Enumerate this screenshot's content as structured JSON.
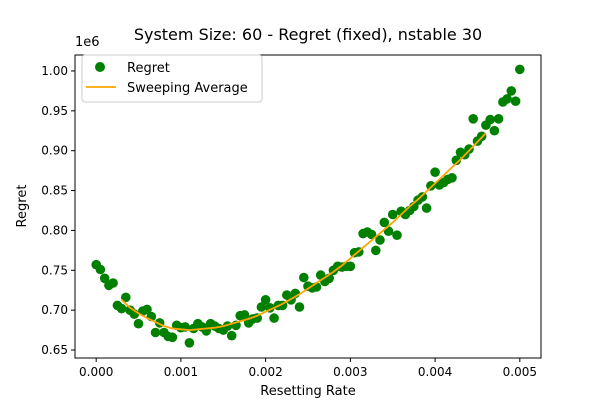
{
  "chart_data": {
    "type": "scatter",
    "title": "System Size: 60 - Regret (fixed), nstable 30",
    "xlabel": "Resetting Rate",
    "ylabel": "Regret",
    "y_scale_label": "1e6",
    "xlim": [
      -0.00025,
      0.00525
    ],
    "ylim": [
      0.64,
      1.02
    ],
    "x_ticks": [
      0.0,
      0.001,
      0.002,
      0.003,
      0.004,
      0.005
    ],
    "x_tick_labels": [
      "0.000",
      "0.001",
      "0.002",
      "0.003",
      "0.004",
      "0.005"
    ],
    "y_ticks": [
      0.65,
      0.7,
      0.75,
      0.8,
      0.85,
      0.9,
      0.95,
      1.0
    ],
    "y_tick_labels": [
      "0.65",
      "0.70",
      "0.75",
      "0.80",
      "0.85",
      "0.90",
      "0.95",
      "1.00"
    ],
    "legend_position": "top-left",
    "series": [
      {
        "name": "Regret",
        "kind": "scatter",
        "color": "#008000",
        "x": [
          0.0,
          5e-05,
          0.0001,
          0.00015,
          0.0002,
          0.00025,
          0.0003,
          0.00035,
          0.0004,
          0.00045,
          0.0005,
          0.00055,
          0.0006,
          0.00065,
          0.0007,
          0.00075,
          0.0008,
          0.00085,
          0.0009,
          0.00095,
          0.001,
          0.00105,
          0.0011,
          0.00115,
          0.0012,
          0.00125,
          0.0013,
          0.00135,
          0.0014,
          0.00145,
          0.0015,
          0.00155,
          0.0016,
          0.00165,
          0.0017,
          0.00175,
          0.0018,
          0.00185,
          0.0019,
          0.00195,
          0.002,
          0.00205,
          0.0021,
          0.00215,
          0.0022,
          0.00225,
          0.0023,
          0.00235,
          0.0024,
          0.00245,
          0.0025,
          0.00255,
          0.0026,
          0.00265,
          0.0027,
          0.00275,
          0.0028,
          0.00285,
          0.0029,
          0.00295,
          0.003,
          0.00305,
          0.0031,
          0.00315,
          0.0032,
          0.00325,
          0.0033,
          0.00335,
          0.0034,
          0.00345,
          0.0035,
          0.00355,
          0.0036,
          0.00365,
          0.0037,
          0.00375,
          0.0038,
          0.00385,
          0.0039,
          0.00395,
          0.004,
          0.00405,
          0.0041,
          0.00415,
          0.0042,
          0.00425,
          0.0043,
          0.00435,
          0.0044,
          0.00445,
          0.0045,
          0.00455,
          0.0046,
          0.00465,
          0.0047,
          0.00475,
          0.0048,
          0.00485,
          0.0049,
          0.00495,
          0.005
        ],
        "y": [
          0.757,
          0.751,
          0.74,
          0.731,
          0.734,
          0.706,
          0.702,
          0.716,
          0.7,
          0.695,
          0.683,
          0.699,
          0.701,
          0.692,
          0.672,
          0.684,
          0.672,
          0.667,
          0.666,
          0.681,
          0.678,
          0.679,
          0.659,
          0.677,
          0.683,
          0.679,
          0.674,
          0.683,
          0.68,
          0.677,
          0.675,
          0.68,
          0.668,
          0.681,
          0.693,
          0.694,
          0.684,
          0.689,
          0.69,
          0.704,
          0.713,
          0.703,
          0.69,
          0.706,
          0.706,
          0.719,
          0.713,
          0.721,
          0.704,
          0.741,
          0.73,
          0.728,
          0.729,
          0.744,
          0.736,
          0.74,
          0.75,
          0.755,
          0.754,
          0.755,
          0.755,
          0.772,
          0.773,
          0.796,
          0.798,
          0.795,
          0.775,
          0.788,
          0.81,
          0.799,
          0.82,
          0.794,
          0.824,
          0.82,
          0.825,
          0.83,
          0.838,
          0.842,
          0.828,
          0.856,
          0.873,
          0.857,
          0.86,
          0.864,
          0.866,
          0.888,
          0.898,
          0.895,
          0.902,
          0.94,
          0.912,
          0.918,
          0.932,
          0.939,
          0.925,
          0.94,
          0.961,
          0.965,
          0.975,
          0.962,
          1.002
        ]
      },
      {
        "name": "Sweeping Average",
        "kind": "line",
        "color": "#ffa500",
        "x": [
          0.0003,
          0.0004,
          0.0005,
          0.0006,
          0.0007,
          0.0008,
          0.0009,
          0.001,
          0.0011,
          0.0012,
          0.0013,
          0.0014,
          0.0015,
          0.0016,
          0.0017,
          0.0018,
          0.0019,
          0.002,
          0.0021,
          0.0022,
          0.0023,
          0.0024,
          0.0025,
          0.0026,
          0.0027,
          0.0028,
          0.0029,
          0.003,
          0.0031,
          0.0032,
          0.0033,
          0.0034,
          0.0035,
          0.0036,
          0.0037,
          0.0038,
          0.0039,
          0.004,
          0.0041,
          0.0042,
          0.0043,
          0.0044,
          0.0045,
          0.0046
        ],
        "y": [
          0.713,
          0.703,
          0.696,
          0.69,
          0.685,
          0.68,
          0.677,
          0.676,
          0.675,
          0.676,
          0.677,
          0.678,
          0.68,
          0.683,
          0.686,
          0.689,
          0.693,
          0.698,
          0.703,
          0.708,
          0.714,
          0.72,
          0.727,
          0.734,
          0.741,
          0.748,
          0.756,
          0.765,
          0.774,
          0.783,
          0.792,
          0.801,
          0.81,
          0.82,
          0.83,
          0.839,
          0.849,
          0.859,
          0.869,
          0.879,
          0.889,
          0.9,
          0.911,
          0.922
        ]
      }
    ]
  }
}
